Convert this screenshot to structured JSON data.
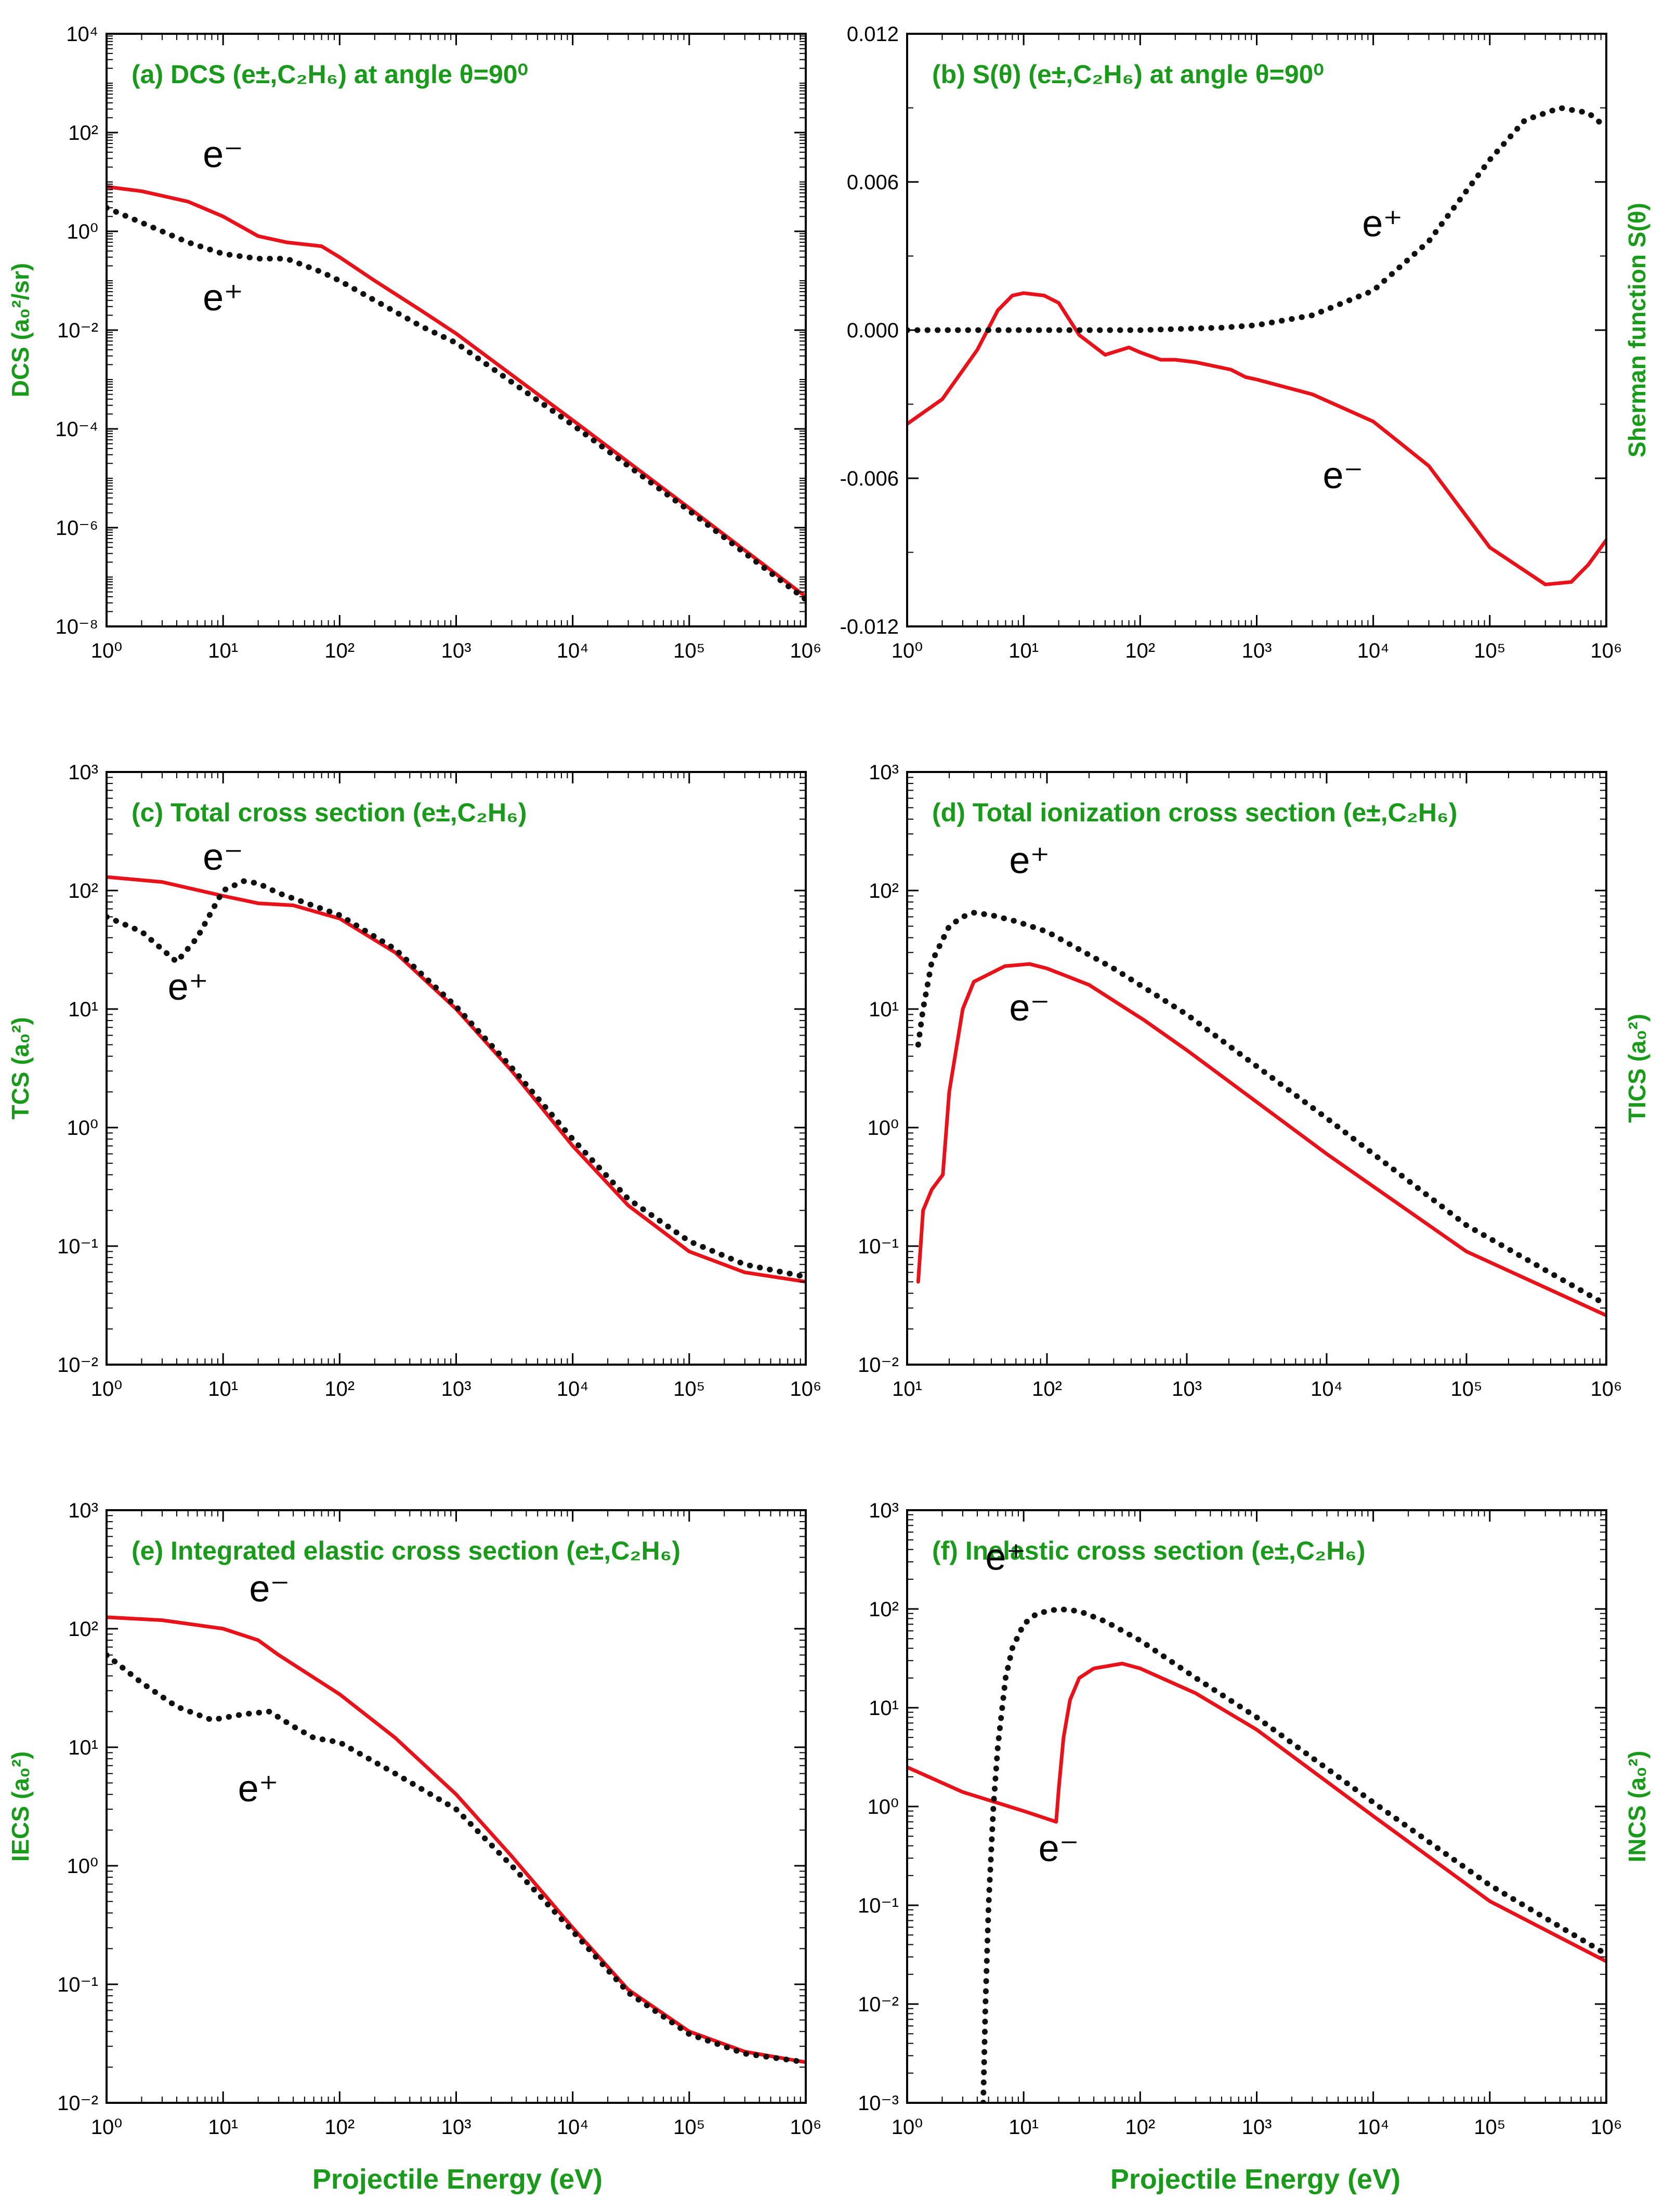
{
  "figure": {
    "xlabel": "Projectile Energy (eV)",
    "colors": {
      "electron": "#e8121a",
      "positron": "#111111",
      "title": "#1a9a1a"
    },
    "series_names": {
      "electron": "e⁻",
      "positron": "e⁺"
    }
  },
  "chart_data": [
    {
      "id": "a",
      "type": "line",
      "title": "(a) DCS (e±,C₂H₆) at angle θ=90⁰",
      "ylabel": "DCS (a₀²/sr)",
      "ylabel_side": "left",
      "xscale": "log",
      "yscale": "log",
      "xlim": [
        1,
        1000000
      ],
      "ylim": [
        1e-08,
        10000
      ],
      "xticks": [
        1,
        10,
        100,
        1000,
        10000,
        100000,
        1000000
      ],
      "xtick_labels": [
        "10⁰",
        "10¹",
        "10²",
        "10³",
        "10⁴",
        "10⁵",
        "10⁶"
      ],
      "yticks": [
        1e-08,
        1e-06,
        0.0001,
        0.01,
        1,
        100,
        10000
      ],
      "ytick_labels": [
        "10⁻⁸",
        "10⁻⁶",
        "10⁻⁴",
        "10⁻²",
        "10⁰",
        "10²",
        "10⁴"
      ],
      "series": [
        {
          "name": "e-",
          "style": "solid",
          "x": [
            1,
            2,
            5,
            10,
            20,
            35,
            70,
            100,
            200,
            500,
            1000,
            10000,
            100000,
            1000000
          ],
          "y": [
            8,
            6.5,
            4,
            2,
            0.8,
            0.6,
            0.5,
            0.3,
            0.1,
            0.025,
            0.0085,
            0.00015,
            2.5e-06,
            4e-08
          ]
        },
        {
          "name": "e+",
          "style": "dotted",
          "x": [
            1,
            2,
            5,
            10,
            20,
            35,
            70,
            100,
            200,
            500,
            1000,
            10000,
            100000,
            1000000
          ],
          "y": [
            3,
            1.5,
            0.6,
            0.35,
            0.28,
            0.28,
            0.15,
            0.1,
            0.04,
            0.012,
            0.0055,
            0.00012,
            2.2e-06,
            3.5e-08
          ]
        }
      ],
      "annotations": [
        {
          "series": "e-",
          "text": "e⁻",
          "x": 10,
          "y": 20
        },
        {
          "series": "e+",
          "text": "e⁺",
          "x": 10,
          "y": 0.025
        }
      ]
    },
    {
      "id": "b",
      "type": "line",
      "title": "(b) S(θ) (e±,C₂H₆) at angle θ=90⁰",
      "ylabel": "Sherman function S(θ)",
      "ylabel_side": "right",
      "xscale": "log",
      "yscale": "linear",
      "xlim": [
        1,
        1000000
      ],
      "ylim": [
        -0.012,
        0.012
      ],
      "xticks": [
        1,
        10,
        100,
        1000,
        10000,
        100000,
        1000000
      ],
      "xtick_labels": [
        "10⁰",
        "10¹",
        "10²",
        "10³",
        "10⁴",
        "10⁵",
        "10⁶"
      ],
      "yticks": [
        -0.012,
        -0.006,
        0,
        0.006,
        0.012
      ],
      "ytick_labels": [
        "-0.012",
        "-0.006",
        "0.000",
        "0.006",
        "0.012"
      ],
      "series": [
        {
          "name": "e-",
          "style": "solid",
          "x": [
            1,
            2,
            4,
            6,
            8,
            10,
            15,
            20,
            30,
            50,
            80,
            100,
            150,
            200,
            300,
            600,
            800,
            1000,
            3000,
            10000,
            30000,
            100000,
            300000,
            500000,
            700000,
            1000000
          ],
          "y": [
            -0.0038,
            -0.0028,
            -0.0008,
            0.0008,
            0.0014,
            0.0015,
            0.0014,
            0.0011,
            -0.0002,
            -0.001,
            -0.0007,
            -0.0009,
            -0.0012,
            -0.0012,
            -0.0013,
            -0.0016,
            -0.0019,
            -0.002,
            -0.0026,
            -0.0037,
            -0.0055,
            -0.0088,
            -0.0103,
            -0.0102,
            -0.0095,
            -0.0085
          ]
        },
        {
          "name": "e+",
          "style": "dotted",
          "x": [
            1,
            10,
            100,
            500,
            1000,
            3000,
            10000,
            30000,
            100000,
            200000,
            400000,
            700000,
            1000000
          ],
          "y": [
            0,
            0,
            0,
            0.0001,
            0.0002,
            0.0006,
            0.0016,
            0.0036,
            0.0069,
            0.0085,
            0.009,
            0.0088,
            0.0082
          ]
        }
      ],
      "annotations": [
        {
          "series": "e+",
          "text": "e⁺",
          "x": 12000,
          "y": 0.0038
        },
        {
          "series": "e-",
          "text": "e⁻",
          "x": 5500,
          "y": -0.0064
        }
      ]
    },
    {
      "id": "c",
      "type": "line",
      "title": "(c) Total cross section (e±,C₂H₆)",
      "ylabel": "TCS (a₀²)",
      "ylabel_side": "left",
      "xscale": "log",
      "yscale": "log",
      "xlim": [
        1,
        1000000
      ],
      "ylim": [
        0.01,
        1000
      ],
      "xticks": [
        1,
        10,
        100,
        1000,
        10000,
        100000,
        1000000
      ],
      "xtick_labels": [
        "10⁰",
        "10¹",
        "10²",
        "10³",
        "10⁴",
        "10⁵",
        "10⁶"
      ],
      "yticks": [
        0.01,
        0.1,
        1,
        10,
        100,
        1000
      ],
      "ytick_labels": [
        "10⁻²",
        "10⁻¹",
        "10⁰",
        "10¹",
        "10²",
        "10³"
      ],
      "series": [
        {
          "name": "e-",
          "style": "solid",
          "x": [
            1,
            3,
            10,
            20,
            40,
            100,
            300,
            1000,
            3000,
            10000,
            30000,
            100000,
            300000,
            1000000
          ],
          "y": [
            130,
            118,
            90,
            78,
            75,
            58,
            30,
            10,
            3,
            0.7,
            0.22,
            0.09,
            0.06,
            0.05
          ]
        },
        {
          "name": "e+",
          "style": "dotted",
          "x": [
            1,
            2,
            4,
            6,
            10,
            15,
            20,
            30,
            100,
            300,
            1000,
            3000,
            10000,
            30000,
            100000,
            300000,
            1000000
          ],
          "y": [
            60,
            45,
            25,
            40,
            100,
            120,
            115,
            95,
            62,
            32,
            10.5,
            3.2,
            0.8,
            0.25,
            0.11,
            0.07,
            0.055
          ]
        }
      ],
      "annotations": [
        {
          "series": "e-",
          "text": "e⁻",
          "x": 10,
          "y": 150
        },
        {
          "series": "e+",
          "text": "e⁺",
          "x": 5,
          "y": 12
        }
      ]
    },
    {
      "id": "d",
      "type": "line",
      "title": "(d) Total ionization cross section (e±,C₂H₆)",
      "ylabel": "TICS (a₀²)",
      "ylabel_side": "right",
      "xscale": "log",
      "yscale": "log",
      "xlim": [
        10,
        1000000
      ],
      "ylim": [
        0.01,
        1000
      ],
      "xticks": [
        10,
        100,
        1000,
        10000,
        100000,
        1000000
      ],
      "xtick_labels": [
        "10¹",
        "10²",
        "10³",
        "10⁴",
        "10⁵",
        "10⁶"
      ],
      "yticks": [
        0.01,
        0.1,
        1,
        10,
        100,
        1000
      ],
      "ytick_labels": [
        "10⁻²",
        "10⁻¹",
        "10⁰",
        "10¹",
        "10²",
        "10³"
      ],
      "series": [
        {
          "name": "e-",
          "style": "solid",
          "x": [
            12,
            13,
            15,
            18,
            20,
            25,
            30,
            50,
            75,
            100,
            200,
            500,
            1000,
            10000,
            100000,
            1000000
          ],
          "y": [
            0.05,
            0.2,
            0.3,
            0.4,
            2,
            10,
            17,
            23,
            24,
            22,
            16,
            8,
            4.5,
            0.6,
            0.09,
            0.026
          ]
        },
        {
          "name": "e+",
          "style": "dotted",
          "x": [
            12,
            13,
            15,
            20,
            25,
            30,
            40,
            60,
            100,
            300,
            1000,
            10000,
            100000,
            1000000
          ],
          "y": [
            5,
            10,
            25,
            50,
            60,
            65,
            62,
            55,
            45,
            22,
            9,
            1.2,
            0.15,
            0.032
          ]
        }
      ],
      "annotations": [
        {
          "series": "e+",
          "text": "e⁺",
          "x": 75,
          "y": 140
        },
        {
          "series": "e-",
          "text": "e⁻",
          "x": 75,
          "y": 8
        }
      ]
    },
    {
      "id": "e",
      "type": "line",
      "title": "(e) Integrated elastic cross section (e±,C₂H₆)",
      "ylabel": "IECS (a₀²)",
      "ylabel_side": "left",
      "xscale": "log",
      "yscale": "log",
      "xlim": [
        1,
        1000000
      ],
      "ylim": [
        0.01,
        1000
      ],
      "xticks": [
        1,
        10,
        100,
        1000,
        10000,
        100000,
        1000000
      ],
      "xtick_labels": [
        "10⁰",
        "10¹",
        "10²",
        "10³",
        "10⁴",
        "10⁵",
        "10⁶"
      ],
      "yticks": [
        0.01,
        0.1,
        1,
        10,
        100,
        1000
      ],
      "ytick_labels": [
        "10⁻²",
        "10⁻¹",
        "10⁰",
        "10¹",
        "10²",
        "10³"
      ],
      "series": [
        {
          "name": "e-",
          "style": "solid",
          "x": [
            1,
            3,
            10,
            20,
            30,
            100,
            300,
            1000,
            3000,
            10000,
            30000,
            100000,
            300000,
            1000000
          ],
          "y": [
            125,
            118,
            100,
            80,
            60,
            28,
            12,
            4,
            1.2,
            0.3,
            0.09,
            0.04,
            0.027,
            0.022
          ]
        },
        {
          "name": "e+",
          "style": "dotted",
          "x": [
            1,
            2,
            4,
            8,
            15,
            25,
            40,
            60,
            100,
            300,
            1000,
            3000,
            10000,
            30000,
            100000,
            300000,
            1000000
          ],
          "y": [
            60,
            35,
            22,
            17,
            19,
            20,
            15,
            12,
            11,
            6,
            3,
            1,
            0.28,
            0.085,
            0.038,
            0.026,
            0.022
          ]
        }
      ],
      "annotations": [
        {
          "series": "e-",
          "text": "e⁻",
          "x": 25,
          "y": 170
        },
        {
          "series": "e+",
          "text": "e⁺",
          "x": 20,
          "y": 3.5
        }
      ]
    },
    {
      "id": "f",
      "type": "line",
      "title": "(f) Inelastic cross section (e±,C₂H₆)",
      "ylabel": "INCS (a₀²)",
      "ylabel_side": "right",
      "xscale": "log",
      "yscale": "log",
      "xlim": [
        1,
        1000000
      ],
      "ylim": [
        0.001,
        1000
      ],
      "xticks": [
        1,
        10,
        100,
        1000,
        10000,
        100000,
        1000000
      ],
      "xtick_labels": [
        "10⁰",
        "10¹",
        "10²",
        "10³",
        "10⁴",
        "10⁵",
        "10⁶"
      ],
      "yticks": [
        0.001,
        0.01,
        0.1,
        1,
        10,
        100,
        1000
      ],
      "ytick_labels": [
        "10⁻³",
        "10⁻²",
        "10⁻¹",
        "10⁰",
        "10¹",
        "10²",
        "10³"
      ],
      "series": [
        {
          "name": "e-",
          "style": "solid",
          "x": [
            1,
            3,
            10,
            19,
            20,
            22,
            25,
            30,
            40,
            70,
            100,
            300,
            1000,
            10000,
            100000,
            1000000
          ],
          "y": [
            2.5,
            1.4,
            0.9,
            0.7,
            1.5,
            5,
            12,
            20,
            25,
            28,
            25,
            14,
            6,
            0.8,
            0.11,
            0.027
          ]
        },
        {
          "name": "e+",
          "style": "dotted",
          "x": [
            4.5,
            4.7,
            5,
            5.5,
            6,
            7,
            8,
            10,
            13,
            20,
            30,
            50,
            100,
            300,
            1000,
            10000,
            100000,
            1000000
          ],
          "y": [
            0.001,
            0.01,
            0.1,
            1,
            4,
            20,
            40,
            70,
            90,
            100,
            95,
            75,
            48,
            20,
            8,
            1.1,
            0.16,
            0.032
          ]
        }
      ],
      "annotations": [
        {
          "series": "e+",
          "text": "e⁺",
          "x": 7,
          "y": 250
        },
        {
          "series": "e-",
          "text": "e⁻",
          "x": 20,
          "y": 0.28
        }
      ]
    }
  ]
}
